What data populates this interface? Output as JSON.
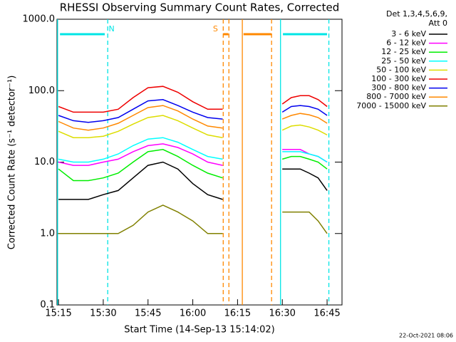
{
  "chart_data": {
    "type": "line",
    "title": "RHESSI Observing Summary Count Rates, Corrected",
    "ylabel": "Corrected Count Rate (s⁻¹ detector⁻¹)",
    "xlabel": "Start Time (14-Sep-13 15:14:02)",
    "legend_title": [
      "Det 1,3,4,5,6,9,",
      "Att 0"
    ],
    "footer": "22-Oct-2021 08:06",
    "log_y": true,
    "xlim": [
      14.5,
      110
    ],
    "ylim": [
      0.1,
      1000
    ],
    "xticks": [
      {
        "value": 15,
        "label": "15:15"
      },
      {
        "value": 30,
        "label": "15:30"
      },
      {
        "value": 45,
        "label": "15:45"
      },
      {
        "value": 60,
        "label": "16:00"
      },
      {
        "value": 75,
        "label": "16:15"
      },
      {
        "value": 90,
        "label": "16:30"
      },
      {
        "value": 105,
        "label": "16:45"
      }
    ],
    "yticks": [
      0.1,
      {
        "value": 1,
        "label": "1.0"
      },
      {
        "value": 10,
        "label": "10.0"
      },
      {
        "value": 100,
        "label": "100.0"
      },
      {
        "value": 1000,
        "label": "1000.0"
      }
    ],
    "x": [
      15,
      20,
      25,
      30,
      35,
      40,
      45,
      50,
      55,
      60,
      65,
      70,
      80,
      90,
      93,
      96,
      99,
      102,
      105
    ],
    "series": [
      {
        "name": "3 - 6 keV",
        "color": "#000000",
        "values": [
          3,
          3,
          3,
          3.5,
          4,
          6,
          9,
          10,
          8,
          5,
          3.5,
          3,
          null,
          8,
          8,
          8,
          7,
          6,
          4
        ]
      },
      {
        "name": "6 - 12 keV",
        "color": "#ff00ff",
        "values": [
          10,
          9,
          9,
          10,
          11,
          14,
          17,
          18,
          16,
          13,
          10,
          9,
          null,
          15,
          15,
          15,
          13,
          12,
          10
        ]
      },
      {
        "name": "12 - 25 keV",
        "color": "#00ee00",
        "values": [
          8,
          5.5,
          5.5,
          6,
          7,
          10,
          14,
          15,
          12,
          9,
          7,
          6,
          null,
          11,
          12,
          12,
          11,
          10,
          8
        ]
      },
      {
        "name": "25 - 50 keV",
        "color": "#00ffff",
        "values": [
          11,
          10,
          10,
          11,
          13,
          17,
          21,
          22,
          19,
          15,
          12,
          11,
          null,
          14,
          14,
          14,
          13,
          12,
          10
        ]
      },
      {
        "name": "50 - 100 keV",
        "color": "#dddd00",
        "values": [
          27,
          22,
          22,
          23,
          27,
          34,
          42,
          45,
          38,
          30,
          24,
          22,
          null,
          28,
          32,
          33,
          31,
          28,
          24
        ]
      },
      {
        "name": "100 - 300 keV",
        "color": "#ee0000",
        "values": [
          60,
          50,
          50,
          50,
          55,
          80,
          110,
          115,
          95,
          70,
          55,
          55,
          null,
          65,
          80,
          85,
          85,
          75,
          60
        ]
      },
      {
        "name": "300 - 800 keV",
        "color": "#0000ee",
        "values": [
          45,
          38,
          36,
          38,
          42,
          55,
          72,
          75,
          62,
          50,
          42,
          40,
          null,
          50,
          60,
          62,
          60,
          55,
          45
        ]
      },
      {
        "name": "800 - 7000 keV",
        "color": "#ff8800",
        "values": [
          37,
          30,
          28,
          30,
          35,
          45,
          58,
          62,
          52,
          40,
          32,
          30,
          null,
          40,
          45,
          48,
          46,
          42,
          35
        ]
      },
      {
        "name": "7000 - 15000 keV",
        "color": "#808000",
        "values": [
          1,
          1,
          1,
          1,
          1,
          1.3,
          2,
          2.5,
          2,
          1.5,
          1,
          1,
          null,
          2,
          2,
          2,
          2,
          1.5,
          1
        ]
      }
    ],
    "markers": [
      {
        "x": 14.7,
        "color": "#00e5e5",
        "style": "solid"
      },
      {
        "x": 31.5,
        "color": "#00e5e5",
        "style": "dashed"
      },
      {
        "x": 89.4,
        "color": "#00e5e5",
        "style": "solid"
      },
      {
        "x": 105.6,
        "color": "#00e5e5",
        "style": "dashed"
      },
      {
        "x": 70.2,
        "color": "#ff8800",
        "style": "dashed"
      },
      {
        "x": 72.1,
        "color": "#ff8800",
        "style": "dashed"
      },
      {
        "x": 76.6,
        "color": "#ff8800",
        "style": "solid"
      },
      {
        "x": 86.4,
        "color": "#ff8800",
        "style": "dashed"
      }
    ],
    "bars": [
      {
        "start": 15.5,
        "end": 30.5,
        "color": "#00e5e5"
      },
      {
        "start": 90.2,
        "end": 105,
        "color": "#00e5e5"
      },
      {
        "start": 70.2,
        "end": 71.9,
        "color": "#ff8800"
      },
      {
        "start": 77,
        "end": 86.3,
        "color": "#ff8800"
      }
    ],
    "bar_labels": [
      {
        "text": "N",
        "x": 32.8,
        "color": "#00e5e5"
      },
      {
        "text": "S",
        "x": 67.6,
        "color": "#ff8800"
      }
    ]
  }
}
